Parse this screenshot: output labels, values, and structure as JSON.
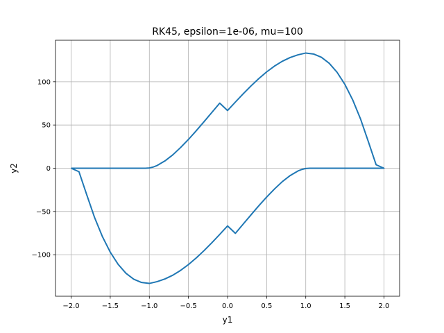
{
  "chart_data": {
    "type": "line",
    "title": "RK45, epsilon=1e-06, mu=100",
    "xlabel": "y1",
    "ylabel": "y2",
    "xlim": [
      -2.2,
      2.2
    ],
    "ylim": [
      -148,
      148
    ],
    "xticks": [
      -2.0,
      -1.5,
      -1.0,
      -0.5,
      0.0,
      0.5,
      1.0,
      1.5,
      2.0
    ],
    "xtick_labels": [
      "−2.0",
      "−1.5",
      "−1.0",
      "−0.5",
      "0.0",
      "0.5",
      "1.0",
      "1.5",
      "2.0"
    ],
    "yticks": [
      -100,
      -50,
      0,
      50,
      100
    ],
    "ytick_labels": [
      "−100",
      "−50",
      "0",
      "50",
      "100"
    ],
    "grid": true,
    "colors": {
      "series": "#1f77b4",
      "grid": "#b0b0b0",
      "axes": "#000000"
    },
    "series": [
      {
        "x": [
          -2.0,
          -1.5,
          -1.2,
          -1.05,
          -1.0,
          -0.95,
          -0.9,
          -0.8,
          -0.7,
          -0.6,
          -0.5,
          -0.4,
          -0.3,
          -0.2,
          -0.1,
          0.0,
          0.1,
          0.2,
          0.3,
          0.4,
          0.5,
          0.6,
          0.7,
          0.8,
          0.9,
          1.0,
          1.1,
          1.2,
          1.3,
          1.4,
          1.5,
          1.6,
          1.7,
          1.8,
          1.9,
          2.0,
          1.5,
          1.2,
          1.05,
          1.0,
          0.95,
          0.9,
          0.8,
          0.7,
          0.6,
          0.5,
          0.4,
          0.3,
          0.2,
          0.1,
          0.0,
          -0.1,
          -0.2,
          -0.3,
          -0.4,
          -0.5,
          -0.6,
          -0.7,
          -0.8,
          -0.9,
          -1.0,
          -1.1,
          -1.2,
          -1.3,
          -1.4,
          -1.5,
          -1.6,
          -1.7,
          -1.8,
          -1.9,
          -2.0
        ],
        "y": [
          0,
          0,
          0,
          0,
          0.3,
          1.4,
          3.2,
          8.5,
          15.5,
          24,
          33.3,
          43.4,
          53.9,
          64.6,
          75.3,
          66.7,
          76.5,
          86.1,
          95.2,
          103.7,
          111.4,
          118.1,
          123.7,
          128.0,
          131.1,
          133.2,
          132.1,
          128.3,
          121.4,
          111.0,
          97.0,
          79.1,
          57.1,
          30.8,
          4.0,
          0,
          0,
          0,
          0,
          -0.3,
          -1.4,
          -3.2,
          -8.5,
          -15.5,
          -24,
          -33.3,
          -43.4,
          -53.9,
          -64.6,
          -75.3,
          -66.7,
          -76.5,
          -86.1,
          -95.2,
          -103.7,
          -111.4,
          -118.1,
          -123.7,
          -128.0,
          -131.1,
          -133.2,
          -132.1,
          -128.3,
          -121.4,
          -111.0,
          -97.0,
          -79.1,
          -57.1,
          -30.8,
          -4.0,
          0
        ]
      }
    ]
  }
}
